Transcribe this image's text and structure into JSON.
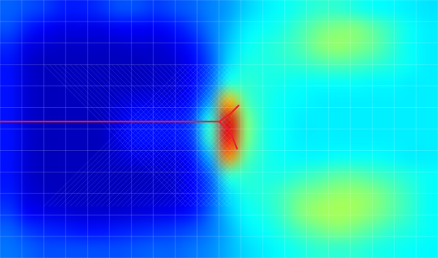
{
  "chart_data": {
    "type": "heatmap",
    "xlim": [
      0,
      24
    ],
    "ylim": [
      0,
      14
    ],
    "tick_labels": false,
    "color_range": [
      0,
      1
    ],
    "cells": [
      [
        0.22,
        0.2,
        0.18,
        0.15,
        0.15,
        0.17,
        0.2,
        0.2,
        0.18,
        0.2,
        0.22,
        0.25,
        0.28,
        0.33,
        0.36,
        0.38,
        0.4,
        0.42,
        0.42,
        0.4,
        0.38,
        0.37,
        0.36,
        0.35
      ],
      [
        0.2,
        0.15,
        0.12,
        0.1,
        0.1,
        0.1,
        0.12,
        0.12,
        0.12,
        0.14,
        0.18,
        0.24,
        0.3,
        0.36,
        0.38,
        0.4,
        0.44,
        0.48,
        0.5,
        0.5,
        0.46,
        0.42,
        0.38,
        0.36
      ],
      [
        0.16,
        0.1,
        0.08,
        0.07,
        0.07,
        0.07,
        0.07,
        0.08,
        0.08,
        0.1,
        0.14,
        0.22,
        0.32,
        0.38,
        0.4,
        0.42,
        0.45,
        0.5,
        0.52,
        0.5,
        0.47,
        0.42,
        0.38,
        0.36
      ],
      [
        0.14,
        0.08,
        0.06,
        0.06,
        0.06,
        0.06,
        0.06,
        0.06,
        0.07,
        0.08,
        0.12,
        0.2,
        0.34,
        0.4,
        0.4,
        0.41,
        0.42,
        0.44,
        0.45,
        0.44,
        0.42,
        0.4,
        0.38,
        0.36
      ],
      [
        0.14,
        0.08,
        0.06,
        0.06,
        0.06,
        0.06,
        0.06,
        0.06,
        0.07,
        0.08,
        0.12,
        0.22,
        0.4,
        0.42,
        0.4,
        0.39,
        0.38,
        0.38,
        0.38,
        0.38,
        0.37,
        0.37,
        0.36,
        0.36
      ],
      [
        0.14,
        0.08,
        0.06,
        0.06,
        0.06,
        0.06,
        0.08,
        0.1,
        0.1,
        0.1,
        0.14,
        0.28,
        0.7,
        0.45,
        0.4,
        0.38,
        0.37,
        0.36,
        0.36,
        0.36,
        0.36,
        0.36,
        0.36,
        0.36
      ],
      [
        0.14,
        0.08,
        0.06,
        0.06,
        0.06,
        0.06,
        0.1,
        0.14,
        0.14,
        0.14,
        0.18,
        0.4,
        0.9,
        0.5,
        0.4,
        0.38,
        0.36,
        0.36,
        0.36,
        0.36,
        0.36,
        0.36,
        0.36,
        0.36
      ],
      [
        0.14,
        0.08,
        0.06,
        0.06,
        0.06,
        0.06,
        0.1,
        0.14,
        0.14,
        0.14,
        0.18,
        0.42,
        0.88,
        0.5,
        0.4,
        0.38,
        0.36,
        0.36,
        0.36,
        0.36,
        0.36,
        0.36,
        0.36,
        0.36
      ],
      [
        0.14,
        0.08,
        0.06,
        0.06,
        0.06,
        0.06,
        0.08,
        0.1,
        0.1,
        0.1,
        0.14,
        0.3,
        0.75,
        0.46,
        0.4,
        0.38,
        0.37,
        0.37,
        0.38,
        0.38,
        0.38,
        0.37,
        0.36,
        0.36
      ],
      [
        0.14,
        0.08,
        0.06,
        0.06,
        0.06,
        0.06,
        0.06,
        0.06,
        0.07,
        0.08,
        0.12,
        0.22,
        0.42,
        0.42,
        0.4,
        0.4,
        0.42,
        0.44,
        0.46,
        0.46,
        0.44,
        0.42,
        0.4,
        0.38
      ],
      [
        0.15,
        0.09,
        0.07,
        0.06,
        0.06,
        0.06,
        0.06,
        0.07,
        0.07,
        0.08,
        0.12,
        0.2,
        0.34,
        0.4,
        0.41,
        0.44,
        0.48,
        0.5,
        0.52,
        0.52,
        0.5,
        0.46,
        0.42,
        0.38
      ],
      [
        0.18,
        0.12,
        0.1,
        0.09,
        0.08,
        0.08,
        0.08,
        0.09,
        0.1,
        0.11,
        0.14,
        0.22,
        0.32,
        0.38,
        0.4,
        0.44,
        0.5,
        0.53,
        0.54,
        0.53,
        0.5,
        0.46,
        0.42,
        0.38
      ],
      [
        0.22,
        0.18,
        0.16,
        0.15,
        0.14,
        0.14,
        0.15,
        0.16,
        0.17,
        0.18,
        0.2,
        0.24,
        0.3,
        0.36,
        0.38,
        0.41,
        0.45,
        0.48,
        0.5,
        0.48,
        0.45,
        0.42,
        0.4,
        0.38
      ],
      [
        0.24,
        0.22,
        0.2,
        0.2,
        0.2,
        0.2,
        0.2,
        0.21,
        0.22,
        0.22,
        0.24,
        0.26,
        0.3,
        0.34,
        0.36,
        0.38,
        0.4,
        0.42,
        0.42,
        0.42,
        0.4,
        0.39,
        0.38,
        0.37
      ]
    ],
    "series": [
      {
        "type": "line",
        "color": "#e8202a",
        "x": [
          0,
          12,
          12.6,
          13.1,
          13.1,
          12,
          12.6,
          13.0
        ],
        "values": [
          7.4,
          7.4,
          7.8,
          8.3,
          null,
          7.4,
          6.9,
          5.9
        ]
      }
    ]
  }
}
